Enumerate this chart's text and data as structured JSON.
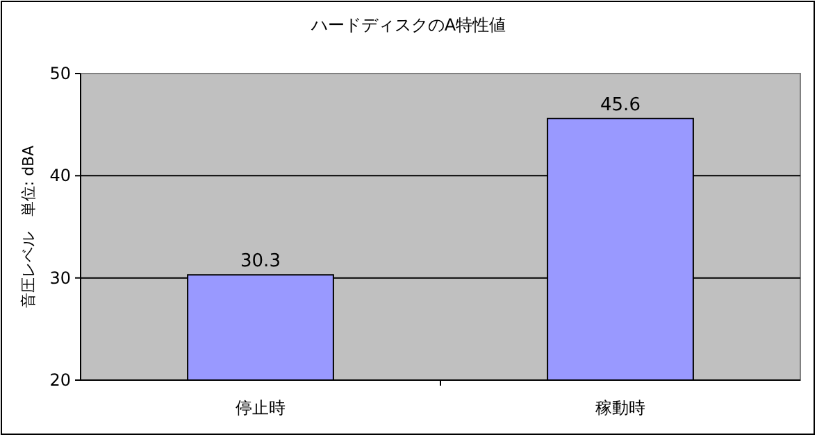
{
  "chart_data": {
    "type": "bar",
    "title": "ハードディスクのA特性値",
    "ylabel": "音圧レベル　単位: dBA",
    "categories": [
      "停止時",
      "稼動時"
    ],
    "values": [
      30.3,
      45.6
    ],
    "color": "#9999ff",
    "ylim": [
      20,
      50
    ],
    "yticks": [
      20,
      30,
      40,
      50
    ],
    "grid": "y",
    "data_labels": true
  }
}
